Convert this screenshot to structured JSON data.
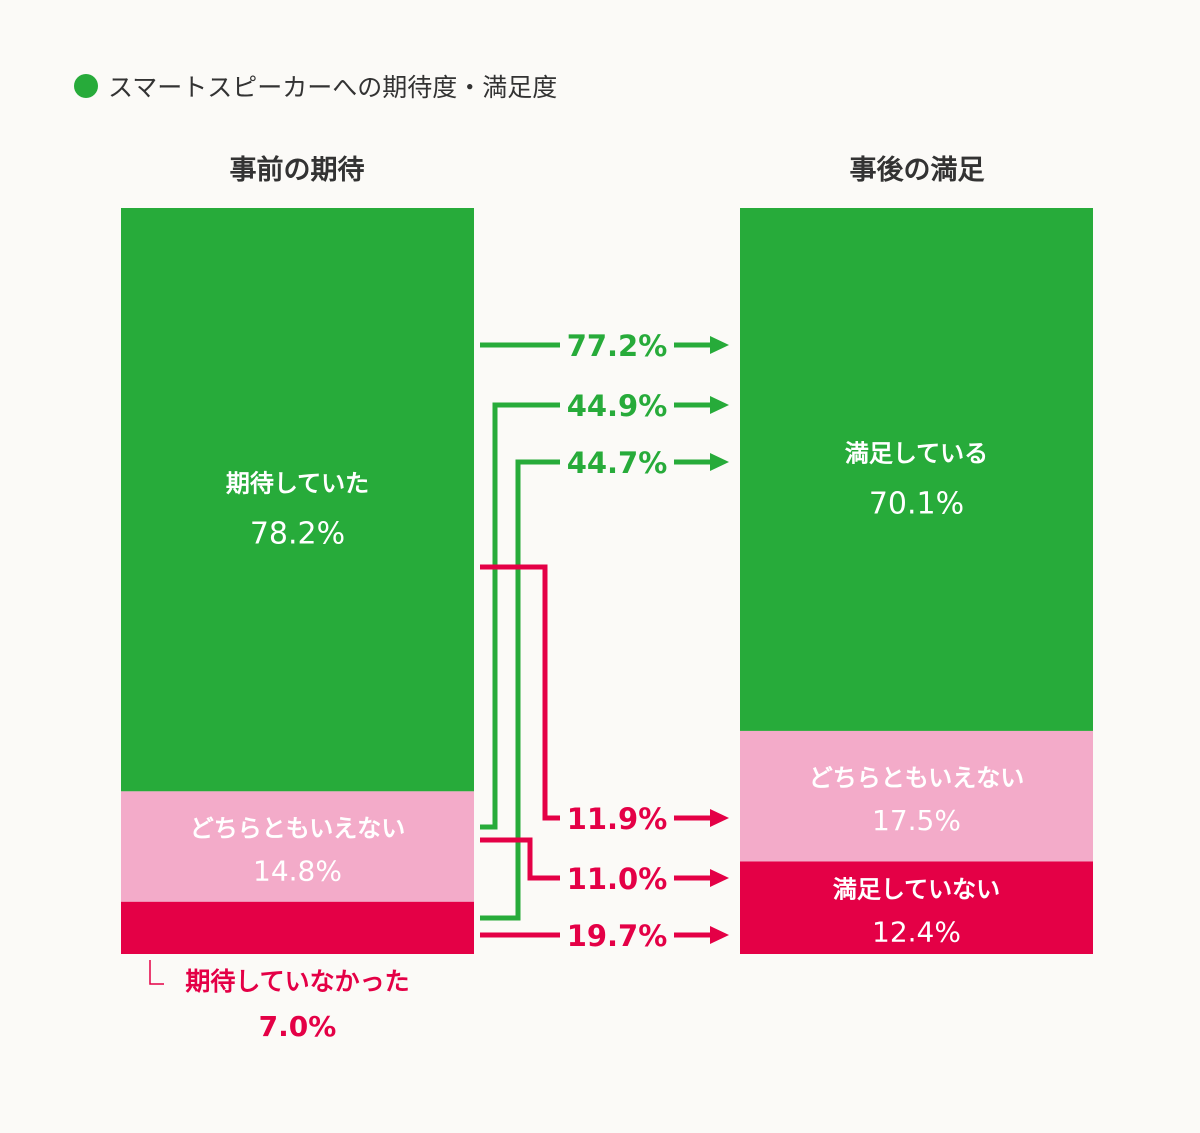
{
  "chart_data": {
    "type": "bar",
    "title": "スマートスピーカーへの期待度・満足度",
    "colors": {
      "positive": "#27ab3a",
      "neutral": "#f3abc9",
      "negative": "#e40046",
      "bg": "#fbfaf7"
    },
    "bars": [
      {
        "name": "事前の期待",
        "segments": [
          {
            "label": "期待していた",
            "value": 78.2,
            "key": "positive"
          },
          {
            "label": "どちらともいえない",
            "value": 14.8,
            "key": "neutral"
          },
          {
            "label": "期待していなかった",
            "value": 7.0,
            "key": "negative"
          }
        ]
      },
      {
        "name": "事後の満足",
        "segments": [
          {
            "label": "満足している",
            "value": 70.1,
            "key": "positive"
          },
          {
            "label": "どちらともいえない",
            "value": 17.5,
            "key": "neutral"
          },
          {
            "label": "満足していない",
            "value": 12.4,
            "key": "negative"
          }
        ]
      }
    ],
    "flows": [
      {
        "from": "期待していた",
        "to": "満足している",
        "value": 77.2,
        "key": "positive"
      },
      {
        "from": "どちらともいえない",
        "to": "満足している",
        "value": 44.9,
        "key": "positive"
      },
      {
        "from": "期待していなかった",
        "to": "満足している",
        "value": 44.7,
        "key": "positive"
      },
      {
        "from": "期待していた",
        "to": "満足していない",
        "value": 11.9,
        "key": "negative"
      },
      {
        "from": "どちらともいえない",
        "to": "満足していない",
        "value": 11.0,
        "key": "negative"
      },
      {
        "from": "期待していなかった",
        "to": "満足していない",
        "value": 19.7,
        "key": "negative"
      }
    ]
  }
}
